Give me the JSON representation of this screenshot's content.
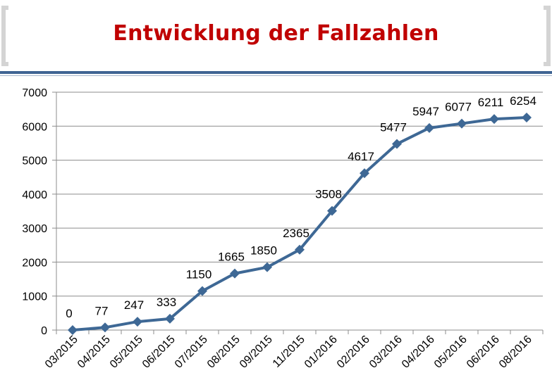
{
  "header": {
    "title": "Entwicklung der Fallzahlen"
  },
  "colors": {
    "title": "#c00000",
    "rule": "#3f6493",
    "series": "#3e6895",
    "bracket": "#d4d4d4"
  },
  "chart_data": {
    "type": "line",
    "title": "",
    "xlabel": "",
    "ylabel": "",
    "categories": [
      "03/2015",
      "04/2015",
      "05/2015",
      "06/2015",
      "07/2015",
      "08/2015",
      "09/2015",
      "11/2015",
      "01/2016",
      "02/2016",
      "03/2016",
      "04/2016",
      "05/2016",
      "06/2016",
      "08/2016"
    ],
    "series": [
      {
        "values": [
          0,
          77,
          247,
          333,
          1150,
          1665,
          1850,
          2365,
          3508,
          4617,
          5477,
          5947,
          6077,
          6211,
          6254
        ]
      }
    ],
    "data_labels": [
      "0",
      "77",
      "247",
      "333",
      "1150",
      "1665",
      "1850",
      "2365",
      "3508",
      "4617",
      "5477",
      "5947",
      "6077",
      "6211",
      "6254"
    ],
    "ylim": [
      0,
      7000
    ],
    "yticks": [
      "0",
      "1000",
      "2000",
      "3000",
      "4000",
      "5000",
      "6000",
      "7000"
    ],
    "grid": true,
    "legend": "none",
    "marker": "diamond"
  }
}
